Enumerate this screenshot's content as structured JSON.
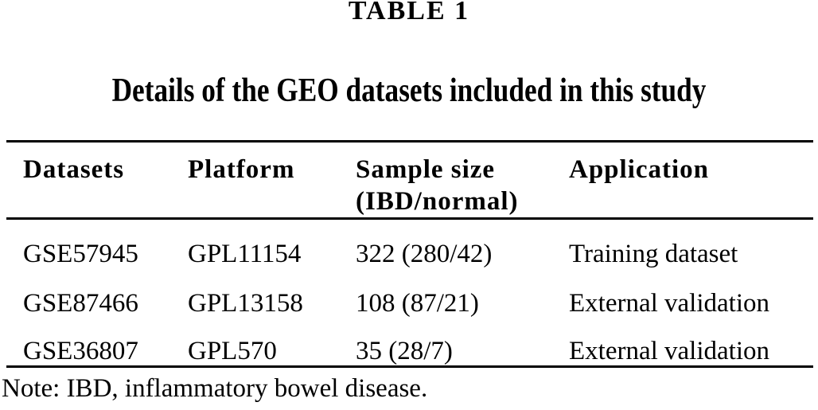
{
  "table_label": "TABLE 1",
  "caption": "Details of the GEO datasets included in this study",
  "headers": [
    {
      "label": "Datasets",
      "sublabel": ""
    },
    {
      "label": "Platform",
      "sublabel": ""
    },
    {
      "label": "Sample size",
      "sublabel": "(IBD/normal)"
    },
    {
      "label": "Application",
      "sublabel": ""
    }
  ],
  "rows": [
    [
      "GSE57945",
      "GPL11154",
      "322 (280/42)",
      "Training dataset"
    ],
    [
      "GSE87466",
      "GPL13158",
      "108 (87/21)",
      "External validation"
    ],
    [
      "GSE36807",
      "GPL570",
      "35 (28/7)",
      "External validation"
    ]
  ],
  "note": "Note: IBD, inflammatory bowel disease.",
  "colors": {
    "text": "#000000",
    "background": "#ffffff",
    "rule": "#000000"
  }
}
